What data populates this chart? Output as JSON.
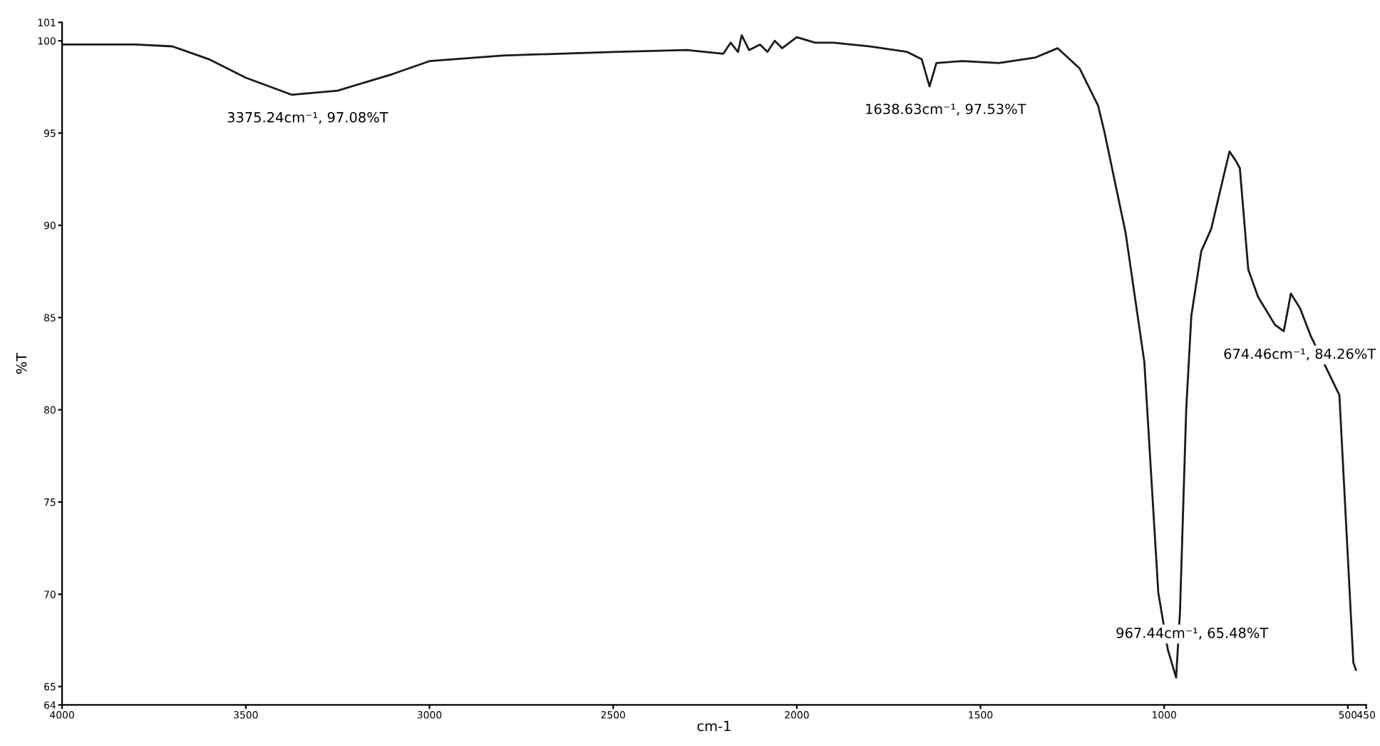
{
  "chart_data": {
    "type": "line",
    "xlabel": "cm-1",
    "ylabel": "%T",
    "xlim": [
      4000,
      450
    ],
    "ylim": [
      64,
      101
    ],
    "xticks": [
      4000,
      3500,
      3000,
      2500,
      2000,
      1500,
      1000,
      500,
      450
    ],
    "yticks": [
      64,
      65,
      70,
      75,
      80,
      85,
      90,
      95,
      100,
      101
    ],
    "grid": false,
    "marker": "none",
    "line_style": "solid",
    "series": [
      {
        "color": "#1a1a1a",
        "x": [
          4000,
          3800,
          3700,
          3600,
          3500,
          3375.24,
          3250,
          3100,
          3000,
          2800,
          2500,
          2300,
          2200,
          2180,
          2160,
          2150,
          2130,
          2100,
          2080,
          2060,
          2040,
          2000,
          1950,
          1900,
          1800,
          1700,
          1660,
          1638.63,
          1620,
          1550,
          1450,
          1350,
          1290,
          1230,
          1180,
          1163,
          1105,
          1054,
          1016,
          990,
          967.44,
          957,
          940,
          926,
          899,
          872,
          833,
          822,
          805,
          794,
          771,
          744,
          698,
          674.46,
          655,
          630,
          601,
          523,
          485,
          478
        ],
        "values": [
          99.8,
          99.8,
          99.7,
          99.0,
          98.0,
          97.08,
          97.3,
          98.2,
          98.9,
          99.2,
          99.4,
          99.5,
          99.3,
          99.9,
          99.4,
          100.3,
          99.5,
          99.8,
          99.4,
          100.0,
          99.6,
          100.2,
          99.9,
          99.9,
          99.7,
          99.4,
          99.0,
          97.53,
          98.8,
          98.9,
          98.8,
          99.1,
          99.6,
          98.5,
          96.5,
          95.1,
          89.6,
          82.6,
          70.1,
          67.0,
          65.48,
          69.0,
          80.0,
          85.1,
          88.6,
          89.8,
          93.1,
          94.0,
          93.5,
          93.1,
          87.6,
          86.1,
          84.6,
          84.26,
          86.3,
          85.5,
          84.0,
          80.8,
          66.3,
          65.9
        ]
      }
    ],
    "annotations": [
      {
        "text": "3375.24cm⁻¹, 97.08%T",
        "x": 3375.24,
        "y": 97.08
      },
      {
        "text": "1638.63cm⁻¹, 97.53%T",
        "x": 1638.63,
        "y": 97.53
      },
      {
        "text": "967.44cm⁻¹, 65.48%T",
        "x": 967.44,
        "y": 65.48
      },
      {
        "text": "674.46cm⁻¹, 84.26%T",
        "x": 674.46,
        "y": 84.26
      }
    ]
  }
}
